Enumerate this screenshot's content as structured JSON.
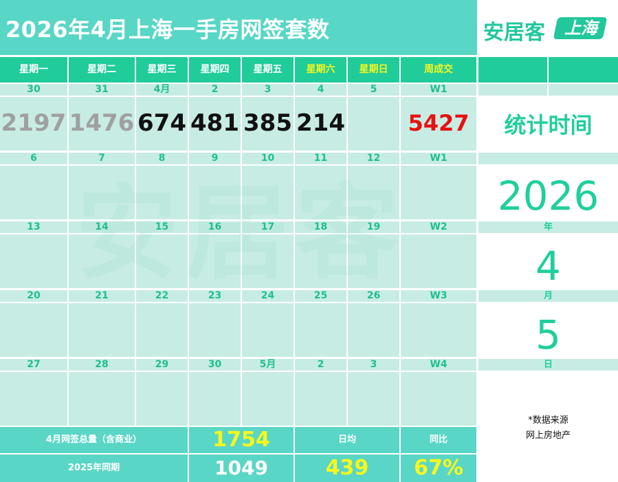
{
  "title": "2026年4月上海一手房网签套数",
  "brand": {
    "name": "安居客",
    "badge": "上海"
  },
  "watermark": "安居客",
  "weekday_headers": [
    "星期一",
    "星期二",
    "星期三",
    "星期四",
    "星期五",
    "星期六",
    "星期日"
  ],
  "week_total_header": "周成交",
  "weeks": [
    {
      "dates": [
        "30",
        "31",
        "4月",
        "2",
        "3",
        "4",
        "5"
      ],
      "label": "W1",
      "values": [
        "2197",
        "1476",
        "674",
        "481",
        "385",
        "214",
        ""
      ],
      "total": "5427"
    },
    {
      "dates": [
        "6",
        "7",
        "8",
        "9",
        "10",
        "11",
        "12"
      ],
      "label": "W1"
    },
    {
      "dates": [
        "13",
        "14",
        "15",
        "16",
        "17",
        "18",
        "19"
      ],
      "label": "W2"
    },
    {
      "dates": [
        "20",
        "21",
        "22",
        "23",
        "24",
        "25",
        "26"
      ],
      "label": "W3"
    },
    {
      "dates": [
        "27",
        "28",
        "29",
        "30",
        "5月",
        "2",
        "3"
      ],
      "label": "W4"
    }
  ],
  "stat": {
    "label": "统计时间",
    "year": "2026",
    "year_unit": "年",
    "month": "4",
    "month_unit": "月",
    "day": "5",
    "day_unit": "日"
  },
  "source": {
    "line1": "*数据来源",
    "line2": "网上房地产"
  },
  "summary": {
    "total_label": "4月网签总量（含商业）",
    "total_value": "1754",
    "avg_label": "日均",
    "yoy_label": "同比",
    "last_year_label": "2025年同期",
    "last_year_value": "1049",
    "avg_value": "439",
    "yoy_value": "67%"
  },
  "colors": {
    "teal": "#58d6c6",
    "green": "#1fcc9a",
    "cell": "#c7ece4",
    "yellow": "#f7f71e",
    "red": "#e81010"
  }
}
